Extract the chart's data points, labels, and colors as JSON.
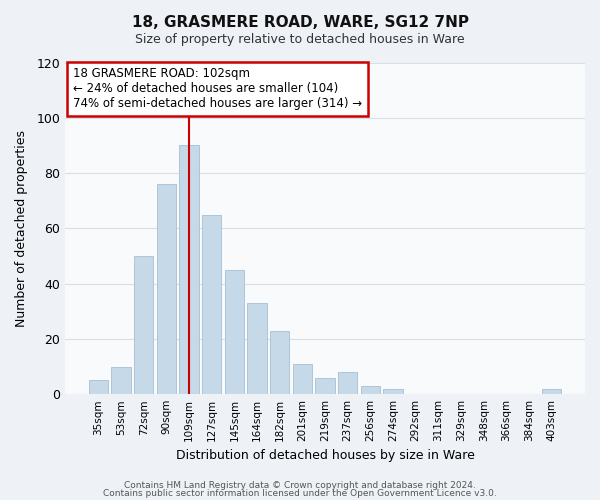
{
  "title": "18, GRASMERE ROAD, WARE, SG12 7NP",
  "subtitle": "Size of property relative to detached houses in Ware",
  "xlabel": "Distribution of detached houses by size in Ware",
  "ylabel": "Number of detached properties",
  "bar_labels": [
    "35sqm",
    "53sqm",
    "72sqm",
    "90sqm",
    "109sqm",
    "127sqm",
    "145sqm",
    "164sqm",
    "182sqm",
    "201sqm",
    "219sqm",
    "237sqm",
    "256sqm",
    "274sqm",
    "292sqm",
    "311sqm",
    "329sqm",
    "348sqm",
    "366sqm",
    "384sqm",
    "403sqm"
  ],
  "bar_values": [
    5,
    10,
    50,
    76,
    90,
    65,
    45,
    33,
    23,
    11,
    6,
    8,
    3,
    2,
    0,
    0,
    0,
    0,
    0,
    0,
    2
  ],
  "bar_color": "#c6d9e8",
  "bar_edge_color": "#a8c0d4",
  "vline_x_index": 4,
  "vline_color": "#cc0000",
  "ylim": [
    0,
    120
  ],
  "yticks": [
    0,
    20,
    40,
    60,
    80,
    100,
    120
  ],
  "annotation_line1": "18 GRASMERE ROAD: 102sqm",
  "annotation_line2": "← 24% of detached houses are smaller (104)",
  "annotation_line3": "74% of semi-detached houses are larger (314) →",
  "footer_line1": "Contains HM Land Registry data © Crown copyright and database right 2024.",
  "footer_line2": "Contains public sector information licensed under the Open Government Licence v3.0.",
  "background_color": "#eef2f7",
  "plot_bg_color": "#f8fafc",
  "grid_color": "#d4dfe8"
}
